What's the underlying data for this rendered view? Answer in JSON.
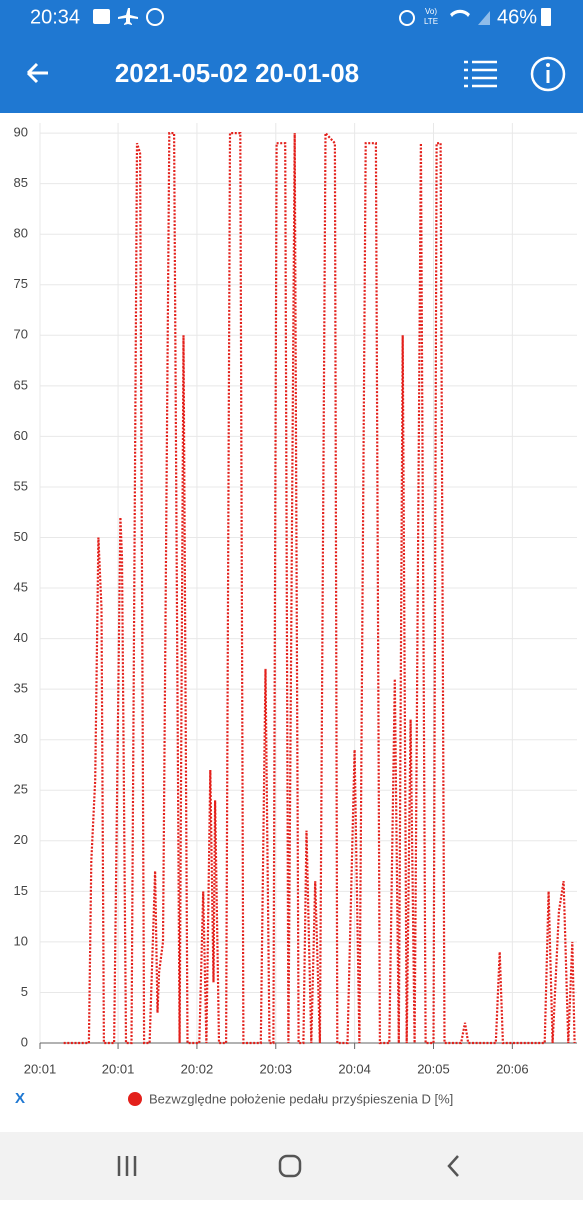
{
  "status_bar": {
    "time": "20:34",
    "network": [
      "Vo)",
      "LTE"
    ],
    "battery": "46%"
  },
  "header": {
    "title": "2021-05-02 20-01-08"
  },
  "chart_data": {
    "type": "line",
    "xlabel": "X",
    "x": [
      0.31,
      0.63,
      0.66,
      0.71,
      0.75,
      0.79,
      0.82,
      0.95,
      1.03,
      1.05,
      1.1,
      1.17,
      1.24,
      1.28,
      1.33,
      1.4,
      1.47,
      1.5,
      1.52,
      1.57,
      1.65,
      1.71,
      1.78,
      1.83,
      1.88,
      2.03,
      2.08,
      2.12,
      2.17,
      2.21,
      2.23,
      2.28,
      2.37,
      2.42,
      2.55,
      2.59,
      2.81,
      2.87,
      2.92,
      2.97,
      3.01,
      3.12,
      3.16,
      3.24,
      3.29,
      3.35,
      3.39,
      3.45,
      3.5,
      3.56,
      3.63,
      3.75,
      3.78,
      3.91,
      4.0,
      4.06,
      4.14,
      4.27,
      4.32,
      4.44,
      4.51,
      4.56,
      4.61,
      4.66,
      4.71,
      4.76,
      4.84,
      4.9,
      5.0,
      5.04,
      5.09,
      5.14,
      5.35,
      5.4,
      5.44,
      5.79,
      5.84,
      5.88,
      6.41,
      6.46,
      6.51,
      6.59,
      6.65,
      6.71,
      6.76,
      6.79
    ],
    "series": [
      {
        "name": "Bezwzględne położenie pedału przyśpieszenia D [%]",
        "color": "#e3201b",
        "values": [
          0,
          0,
          18,
          26,
          50,
          43,
          0,
          0,
          52,
          48,
          0,
          0,
          89,
          88,
          0,
          0,
          17,
          3,
          7,
          10,
          90,
          90,
          0,
          70,
          0,
          0,
          15,
          0,
          27,
          6,
          24,
          0,
          0,
          90,
          90,
          0,
          0,
          37,
          0,
          0,
          89,
          89,
          0,
          90,
          0,
          0,
          21,
          0,
          16,
          0,
          90,
          89,
          0,
          0,
          29,
          0,
          89,
          89,
          0,
          0,
          36,
          0,
          70,
          0,
          32,
          0,
          89,
          0,
          0,
          89,
          89,
          0,
          0,
          2,
          0,
          0,
          9,
          0,
          0,
          15,
          0,
          13,
          16,
          0,
          10,
          0
        ]
      }
    ],
    "xlim": [
      0.01,
      6.82
    ],
    "xticks": [
      {
        "value": 0.01,
        "label": "20:01"
      },
      {
        "value": 1,
        "label": "20:01"
      },
      {
        "value": 2,
        "label": "20:02"
      },
      {
        "value": 3,
        "label": "20:03"
      },
      {
        "value": 4,
        "label": "20:04"
      },
      {
        "value": 5,
        "label": "20:05"
      },
      {
        "value": 6,
        "label": "20:06"
      }
    ],
    "ylim": [
      0,
      91
    ],
    "yticks": [
      0,
      5,
      10,
      15,
      20,
      25,
      30,
      35,
      40,
      45,
      50,
      55,
      60,
      65,
      70,
      75,
      80,
      85,
      90
    ],
    "grid": true
  }
}
